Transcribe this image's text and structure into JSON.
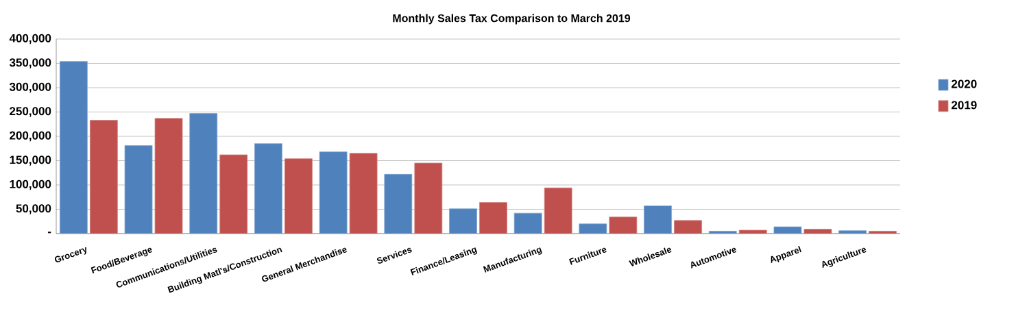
{
  "chart_data": {
    "type": "bar",
    "title": "Monthly Sales Tax Comparison to March 2019",
    "categories": [
      "Grocery",
      "Food/Beverage",
      "Communications/Utilities",
      "Building Matl's/Construction",
      "General Merchandise",
      "Services",
      "Finance/Leasing",
      "Manufacturing",
      "Furniture",
      "Wholesale",
      "Automotive",
      "Apparel",
      "Agriculture"
    ],
    "series": [
      {
        "name": "2020",
        "color": "#4f81bd",
        "values": [
          354000,
          181000,
          247000,
          185000,
          168000,
          122000,
          51000,
          42000,
          20000,
          57000,
          5000,
          14000,
          6000
        ]
      },
      {
        "name": "2019",
        "color": "#c0504d",
        "values": [
          233000,
          237000,
          162000,
          154000,
          165000,
          145000,
          64000,
          94000,
          34000,
          27000,
          7000,
          9000,
          5000
        ]
      }
    ],
    "ylim": [
      0,
      400000
    ],
    "yticks": [
      {
        "value": 0,
        "label": "-"
      },
      {
        "value": 50000,
        "label": "50,000"
      },
      {
        "value": 100000,
        "label": "100,000"
      },
      {
        "value": 150000,
        "label": "150,000"
      },
      {
        "value": 200000,
        "label": "200,000"
      },
      {
        "value": 250000,
        "label": "250,000"
      },
      {
        "value": 300000,
        "label": "300,000"
      },
      {
        "value": 350000,
        "label": "350,000"
      },
      {
        "value": 400000,
        "label": "400,000"
      }
    ],
    "grid": "y",
    "legend": "right"
  }
}
